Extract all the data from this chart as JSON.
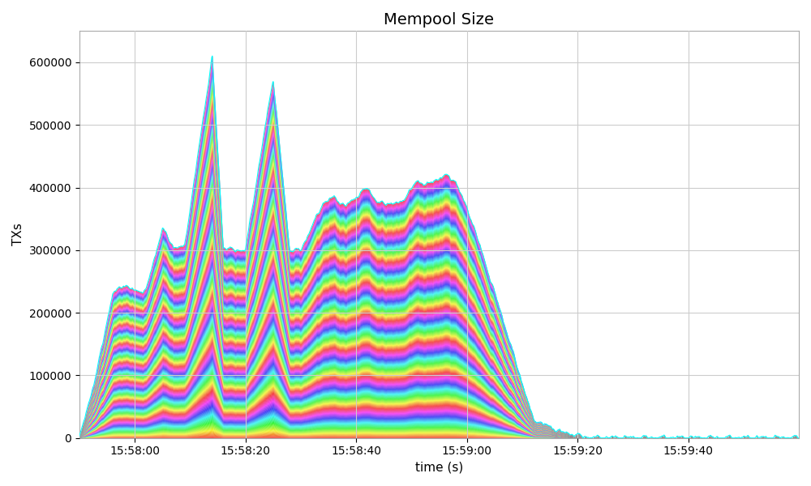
{
  "title": "Mempool Size",
  "xlabel": "time (s)",
  "ylabel": "TXs",
  "ylim": [
    0,
    650000
  ],
  "ytick_positions": [
    0,
    100000,
    200000,
    300000,
    400000,
    500000,
    600000
  ],
  "ytick_labels": [
    "0",
    "100000",
    "200000",
    "300000",
    "400000",
    "500000",
    "600000"
  ],
  "background_color": "#ffffff",
  "grid_color": "#cccccc",
  "title_fontsize": 14,
  "n_lines": 500,
  "color_cycles": 8,
  "outline_color": "cyan",
  "x_tick_positions": [
    10,
    30,
    50,
    70,
    90,
    110
  ],
  "x_tick_labels": [
    "15:58:00",
    "15:58:20",
    "15:58:40",
    "15:59:00",
    "15:59:20",
    "15:59:40"
  ],
  "xlim": [
    0,
    130
  ]
}
